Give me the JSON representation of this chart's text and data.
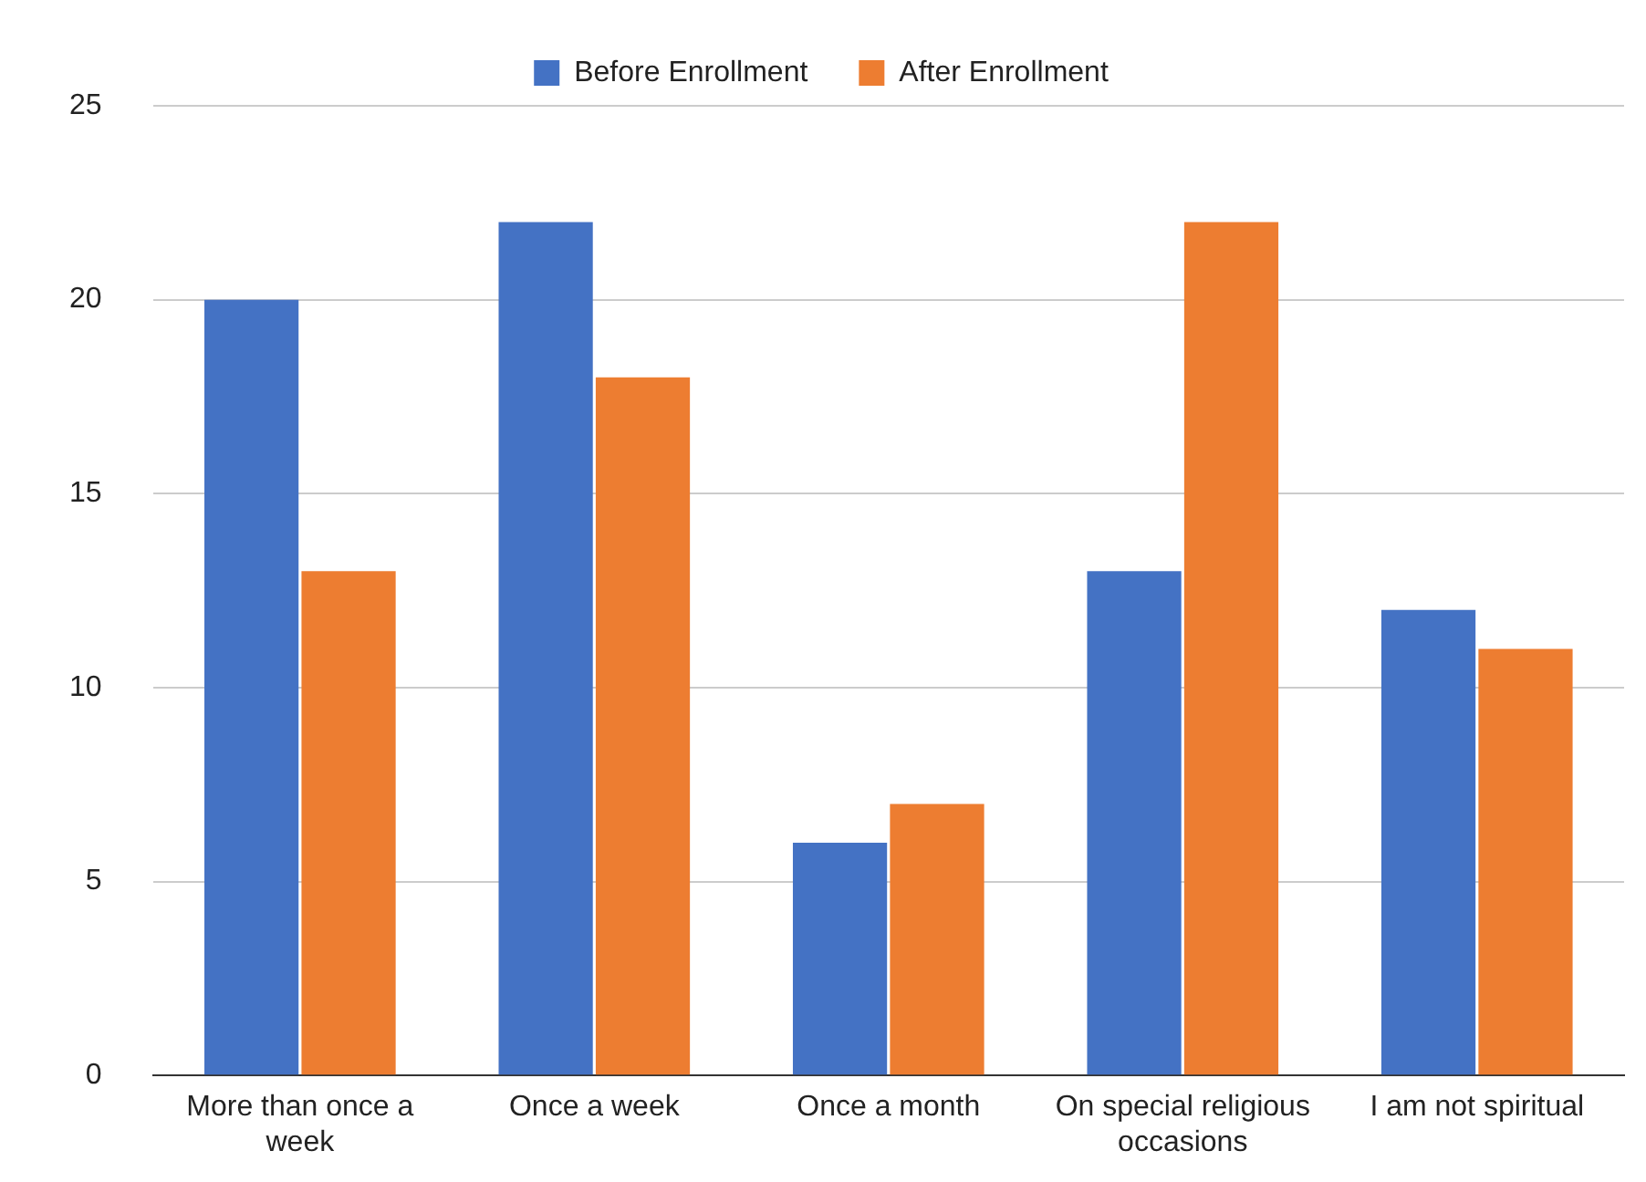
{
  "chart_data": {
    "type": "bar",
    "categories": [
      "More than once a week",
      "Once a week",
      "Once a month",
      "On special religious occasions",
      "I am not spiritual"
    ],
    "series": [
      {
        "name": "Before Enrollment",
        "color": "#4472c4",
        "values": [
          20,
          22,
          6,
          13,
          12
        ]
      },
      {
        "name": "After Enrollment",
        "color": "#ed7d31",
        "values": [
          13,
          18,
          7,
          22,
          11
        ]
      }
    ],
    "ylim": [
      0,
      25
    ],
    "yticks": [
      0,
      5,
      10,
      15,
      20,
      25
    ],
    "grid": "y",
    "legend": "top"
  }
}
